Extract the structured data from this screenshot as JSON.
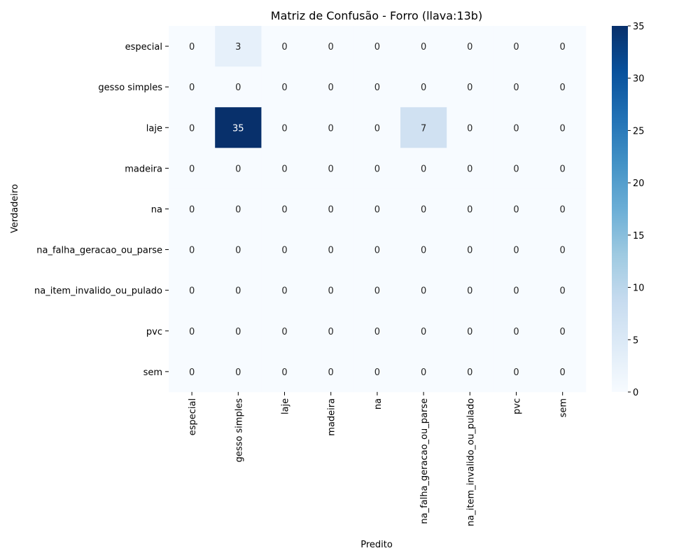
{
  "chart_data": {
    "type": "heatmap",
    "title": "Matriz de Confusão - Forro (llava:13b)",
    "xlabel": "Predito",
    "ylabel": "Verdadeiro",
    "x_categories": [
      "especial",
      "gesso simples",
      "laje",
      "madeira",
      "na",
      "na_falha_geracao_ou_parse",
      "na_item_invalido_ou_pulado",
      "pvc",
      "sem"
    ],
    "y_categories": [
      "especial",
      "gesso simples",
      "laje",
      "madeira",
      "na",
      "na_falha_geracao_ou_parse",
      "na_item_invalido_ou_pulado",
      "pvc",
      "sem"
    ],
    "values": [
      [
        0,
        3,
        0,
        0,
        0,
        0,
        0,
        0,
        0
      ],
      [
        0,
        0,
        0,
        0,
        0,
        0,
        0,
        0,
        0
      ],
      [
        0,
        35,
        0,
        0,
        0,
        7,
        0,
        0,
        0
      ],
      [
        0,
        0,
        0,
        0,
        0,
        0,
        0,
        0,
        0
      ],
      [
        0,
        0,
        0,
        0,
        0,
        0,
        0,
        0,
        0
      ],
      [
        0,
        0,
        0,
        0,
        0,
        0,
        0,
        0,
        0
      ],
      [
        0,
        0,
        0,
        0,
        0,
        0,
        0,
        0,
        0
      ],
      [
        0,
        0,
        0,
        0,
        0,
        0,
        0,
        0,
        0
      ],
      [
        0,
        0,
        0,
        0,
        0,
        0,
        0,
        0,
        0
      ]
    ],
    "colorbar": {
      "min": 0,
      "max": 35,
      "ticks": [
        0,
        5,
        10,
        15,
        20,
        25,
        30,
        35
      ]
    },
    "colormap": "Blues",
    "colors": {
      "low": "#f7fbff",
      "high": "#08306b"
    }
  }
}
